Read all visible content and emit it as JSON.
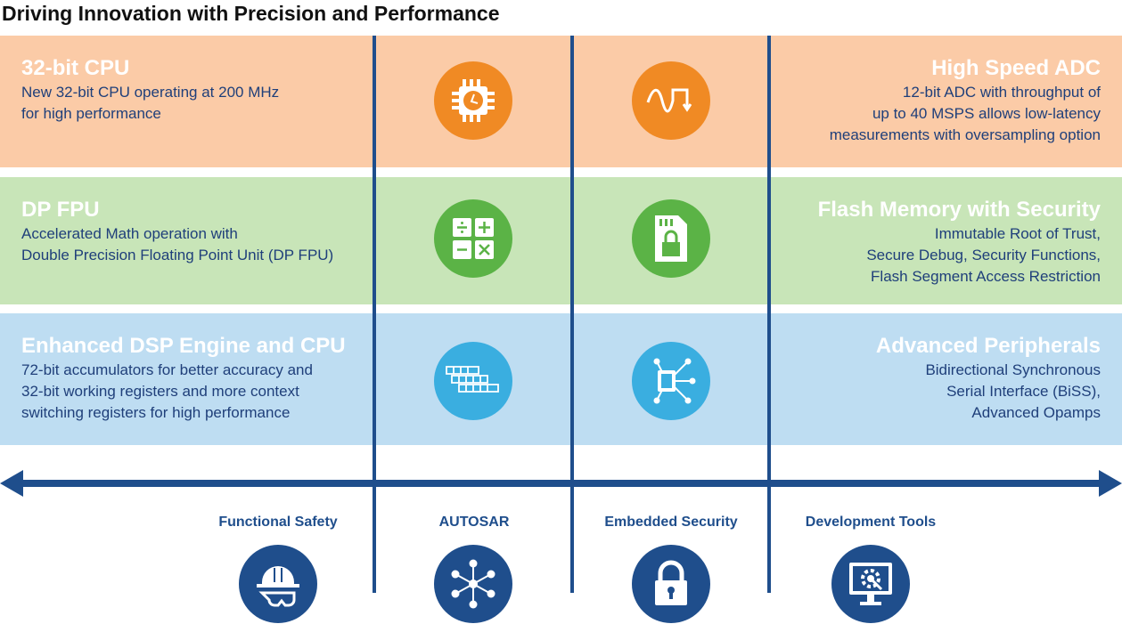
{
  "title": "Driving Innovation with Precision and Performance",
  "colors": {
    "orange": "#F08A24",
    "green": "#5BB346",
    "blue": "#3AAEE0",
    "navy": "#1F4E8C"
  },
  "rows": [
    {
      "left": {
        "heading": "32-bit CPU",
        "lines": [
          "New 32-bit CPU operating at 200 MHz",
          "for high performance"
        ]
      },
      "right": {
        "heading": "High Speed ADC",
        "lines": [
          "12-bit ADC with throughput of",
          "up to 40 MSPS allows low-latency",
          "measurements with oversampling option"
        ]
      },
      "icons": [
        "cpu-clock-icon",
        "adc-waveform-icon"
      ]
    },
    {
      "left": {
        "heading": "DP FPU",
        "lines": [
          "Accelerated Math operation with",
          "Double Precision Floating Point Unit (DP FPU)"
        ]
      },
      "right": {
        "heading": "Flash Memory with Security",
        "lines": [
          "Immutable Root of Trust,",
          "Secure Debug, Security Functions,",
          "Flash Segment Access Restriction"
        ]
      },
      "icons": [
        "calculator-icon",
        "sd-card-lock-icon"
      ]
    },
    {
      "left": {
        "heading": "Enhanced DSP Engine and CPU",
        "lines": [
          "72-bit accumulators for better accuracy and",
          "32-bit working registers and more context",
          "switching registers for high performance"
        ]
      },
      "right": {
        "heading": "Advanced Peripherals",
        "lines": [
          "Bidirectional Synchronous",
          "Serial Interface (BiSS),",
          "Advanced Opamps"
        ]
      },
      "icons": [
        "register-grid-icon",
        "chip-network-icon"
      ]
    }
  ],
  "bottom": [
    {
      "label": "Functional Safety",
      "icon": "hard-hat-goggles-icon"
    },
    {
      "label": "AUTOSAR",
      "icon": "network-hub-icon"
    },
    {
      "label": "Embedded Security",
      "icon": "padlock-icon"
    },
    {
      "label": "Development Tools",
      "icon": "monitor-gear-icon"
    }
  ]
}
